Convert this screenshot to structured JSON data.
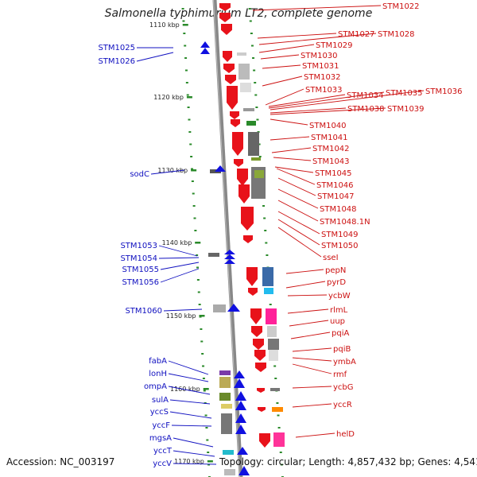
{
  "title": "Salmonella typhimurium LT2, complete genome",
  "footer": {
    "accession": "Accession: NC_003197",
    "topology": "Topology: circular; Length: 4,857,432 bp; Genes: 4,541"
  },
  "colors": {
    "forward": "#e8121a",
    "reverse": "#1010e0",
    "forward_text": "#cc1010",
    "reverse_text": "#1010c0",
    "tick": "#2a8a2a"
  },
  "ticks": [
    "1110 kbp",
    "1120 kbp",
    "1130 kbp",
    "1140 kbp",
    "1150 kbp",
    "1160 kbp",
    "1170 kbp"
  ],
  "right_genes": [
    "STM1022",
    "STM1027",
    "STM1028",
    "STM1029",
    "STM1030",
    "STM1031",
    "STM1032",
    "STM1033",
    "STM1034",
    "STM1035",
    "STM1036",
    "STM1038",
    "STM1039",
    "STM1040",
    "STM1041",
    "STM1042",
    "STM1043",
    "STM1045",
    "STM1046",
    "STM1047",
    "STM1048",
    "STM1048.1N",
    "STM1049",
    "STM1050",
    "sseI",
    "pepN",
    "pyrD",
    "ycbW",
    "rlmL",
    "uup",
    "pqiA",
    "pqiB",
    "ymbA",
    "rmf",
    "ycbG",
    "yccR",
    "helD"
  ],
  "left_genes": [
    "STM1025",
    "STM1026",
    "sodC",
    "STM1053",
    "STM1054",
    "STM1055",
    "STM1056",
    "STM1060",
    "fabA",
    "lonH",
    "ompA",
    "sulA",
    "yccS",
    "yccF",
    "mgsA",
    "yccT",
    "yccV"
  ]
}
